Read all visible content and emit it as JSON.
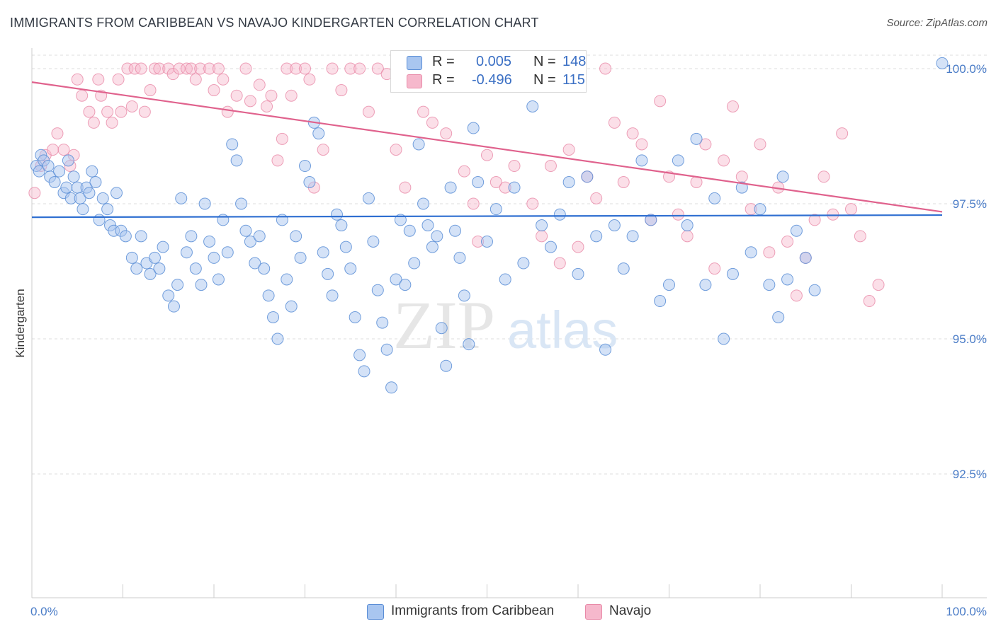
{
  "title": "IMMIGRANTS FROM CARIBBEAN VS NAVAJO KINDERGARTEN CORRELATION CHART",
  "source": "Source: ZipAtlas.com",
  "watermark": {
    "zip": "ZIP",
    "atlas": "atlas"
  },
  "colors": {
    "blue_fill": "#a9c6f0",
    "blue_stroke": "#5b8ed6",
    "blue_line": "#2f6fd1",
    "pink_fill": "#f6b8cc",
    "pink_stroke": "#e88aa8",
    "pink_line": "#e0628d",
    "tick_text": "#4a7cc7",
    "grid": "#dddddd"
  },
  "legend": {
    "rows": [
      {
        "r_label": "R =",
        "r_value": "0.005",
        "n_label": "N =",
        "n_value": "148"
      },
      {
        "r_label": "R =",
        "r_value": "-0.496",
        "n_label": "N =",
        "n_value": "115"
      }
    ],
    "bottom": [
      "Immigrants from Caribbean",
      "Navajo"
    ]
  },
  "chart_data": {
    "type": "scatter",
    "title": "IMMIGRANTS FROM CARIBBEAN VS NAVAJO KINDERGARTEN CORRELATION CHART",
    "xlabel": "",
    "ylabel": "Kindergarten",
    "x_ticks": [
      "0.0%",
      "100.0%"
    ],
    "y_ticks": [
      "100.0%",
      "97.5%",
      "95.0%",
      "92.5%"
    ],
    "xlim": [
      0,
      100
    ],
    "ylim": [
      90.0,
      100.5
    ],
    "grid": true,
    "legend_placement": "top-center",
    "series": [
      {
        "name": "Immigrants from Caribbean",
        "trend": {
          "x": [
            0,
            100
          ],
          "y": [
            97.25,
            97.29
          ]
        },
        "points": [
          [
            0.5,
            98.2
          ],
          [
            0.8,
            98.1
          ],
          [
            1.0,
            98.4
          ],
          [
            1.3,
            98.3
          ],
          [
            1.8,
            98.2
          ],
          [
            2.0,
            98.0
          ],
          [
            2.5,
            97.9
          ],
          [
            3.0,
            98.1
          ],
          [
            3.5,
            97.7
          ],
          [
            3.8,
            97.8
          ],
          [
            4.0,
            98.3
          ],
          [
            4.3,
            97.6
          ],
          [
            4.6,
            98.0
          ],
          [
            5.0,
            97.8
          ],
          [
            5.3,
            97.6
          ],
          [
            5.6,
            97.4
          ],
          [
            6.0,
            97.8
          ],
          [
            6.3,
            97.7
          ],
          [
            6.6,
            98.1
          ],
          [
            7.0,
            97.9
          ],
          [
            7.4,
            97.2
          ],
          [
            7.8,
            97.6
          ],
          [
            8.3,
            97.4
          ],
          [
            8.6,
            97.1
          ],
          [
            9.0,
            97.0
          ],
          [
            9.3,
            97.7
          ],
          [
            9.8,
            97.0
          ],
          [
            10.3,
            96.9
          ],
          [
            11.0,
            96.5
          ],
          [
            11.5,
            96.3
          ],
          [
            12.0,
            96.9
          ],
          [
            12.6,
            96.4
          ],
          [
            13.0,
            96.2
          ],
          [
            13.5,
            96.5
          ],
          [
            14.0,
            96.3
          ],
          [
            14.4,
            96.7
          ],
          [
            15.0,
            95.8
          ],
          [
            15.6,
            95.6
          ],
          [
            16.0,
            96.0
          ],
          [
            16.4,
            97.6
          ],
          [
            17.0,
            96.6
          ],
          [
            17.5,
            96.9
          ],
          [
            18.0,
            96.3
          ],
          [
            18.6,
            96.0
          ],
          [
            19.0,
            97.5
          ],
          [
            19.5,
            96.8
          ],
          [
            20.0,
            96.5
          ],
          [
            20.5,
            96.1
          ],
          [
            21.0,
            97.2
          ],
          [
            21.5,
            96.6
          ],
          [
            22.0,
            98.6
          ],
          [
            22.5,
            98.3
          ],
          [
            23.0,
            97.5
          ],
          [
            23.5,
            97.0
          ],
          [
            24.0,
            96.8
          ],
          [
            24.5,
            96.4
          ],
          [
            25.0,
            96.9
          ],
          [
            25.5,
            96.3
          ],
          [
            26.0,
            95.8
          ],
          [
            26.5,
            95.4
          ],
          [
            27.0,
            95.0
          ],
          [
            27.5,
            97.2
          ],
          [
            28.0,
            96.1
          ],
          [
            28.5,
            95.6
          ],
          [
            29.0,
            96.9
          ],
          [
            29.5,
            96.5
          ],
          [
            30.0,
            98.2
          ],
          [
            30.5,
            97.9
          ],
          [
            31.0,
            99.0
          ],
          [
            31.5,
            98.8
          ],
          [
            32.0,
            96.6
          ],
          [
            32.5,
            96.2
          ],
          [
            33.0,
            95.8
          ],
          [
            33.5,
            97.3
          ],
          [
            34.0,
            97.1
          ],
          [
            34.5,
            96.7
          ],
          [
            35.0,
            96.3
          ],
          [
            35.5,
            95.4
          ],
          [
            36.0,
            94.7
          ],
          [
            36.5,
            94.4
          ],
          [
            37.0,
            97.6
          ],
          [
            37.5,
            96.8
          ],
          [
            38.0,
            95.9
          ],
          [
            38.5,
            95.3
          ],
          [
            39.0,
            94.8
          ],
          [
            39.5,
            94.1
          ],
          [
            40.0,
            96.1
          ],
          [
            40.5,
            97.2
          ],
          [
            41.0,
            96.0
          ],
          [
            41.5,
            97.0
          ],
          [
            42.0,
            96.4
          ],
          [
            42.5,
            98.6
          ],
          [
            43.0,
            97.5
          ],
          [
            43.5,
            97.1
          ],
          [
            44.0,
            96.7
          ],
          [
            44.5,
            96.9
          ],
          [
            45.0,
            95.2
          ],
          [
            45.5,
            94.5
          ],
          [
            46.0,
            97.8
          ],
          [
            46.5,
            97.0
          ],
          [
            47.0,
            96.5
          ],
          [
            47.5,
            95.8
          ],
          [
            48.0,
            94.9
          ],
          [
            48.5,
            98.9
          ],
          [
            49.0,
            97.9
          ],
          [
            50.0,
            96.8
          ],
          [
            51.0,
            97.4
          ],
          [
            52.0,
            96.1
          ],
          [
            53.0,
            97.8
          ],
          [
            54.0,
            96.4
          ],
          [
            55.0,
            99.3
          ],
          [
            56.0,
            97.1
          ],
          [
            57.0,
            96.7
          ],
          [
            58.0,
            97.3
          ],
          [
            59.0,
            97.9
          ],
          [
            60.0,
            96.2
          ],
          [
            61.0,
            98.0
          ],
          [
            62.0,
            96.9
          ],
          [
            63.0,
            94.8
          ],
          [
            64.0,
            97.1
          ],
          [
            65.0,
            96.3
          ],
          [
            66.0,
            96.9
          ],
          [
            67.0,
            98.3
          ],
          [
            68.0,
            97.2
          ],
          [
            69.0,
            95.7
          ],
          [
            70.0,
            96.0
          ],
          [
            71.0,
            98.3
          ],
          [
            72.0,
            97.1
          ],
          [
            73.0,
            98.7
          ],
          [
            74.0,
            96.0
          ],
          [
            75.0,
            97.6
          ],
          [
            76.0,
            95.0
          ],
          [
            77.0,
            96.2
          ],
          [
            78.0,
            97.8
          ],
          [
            79.0,
            96.6
          ],
          [
            80.0,
            97.4
          ],
          [
            81.0,
            96.0
          ],
          [
            82.0,
            95.4
          ],
          [
            82.5,
            98.0
          ],
          [
            83.0,
            96.1
          ],
          [
            84.0,
            97.0
          ],
          [
            85.0,
            96.5
          ],
          [
            86.0,
            95.9
          ],
          [
            100.0,
            100.1
          ]
        ]
      },
      {
        "name": "Navajo",
        "trend": {
          "x": [
            0,
            100
          ],
          "y": [
            99.75,
            97.35
          ]
        },
        "points": [
          [
            0.3,
            97.7
          ],
          [
            1.0,
            98.2
          ],
          [
            1.5,
            98.4
          ],
          [
            2.3,
            98.5
          ],
          [
            2.8,
            98.8
          ],
          [
            3.5,
            98.5
          ],
          [
            4.2,
            98.2
          ],
          [
            4.6,
            98.4
          ],
          [
            5.0,
            99.8
          ],
          [
            5.5,
            99.5
          ],
          [
            6.3,
            99.2
          ],
          [
            6.8,
            99.0
          ],
          [
            7.3,
            99.8
          ],
          [
            7.6,
            99.5
          ],
          [
            8.3,
            99.2
          ],
          [
            8.8,
            99.0
          ],
          [
            9.5,
            99.8
          ],
          [
            9.8,
            99.2
          ],
          [
            10.5,
            100.0
          ],
          [
            11.0,
            99.3
          ],
          [
            11.3,
            100.0
          ],
          [
            12.0,
            100.0
          ],
          [
            12.4,
            99.2
          ],
          [
            13.0,
            99.6
          ],
          [
            13.5,
            100.0
          ],
          [
            14.0,
            100.0
          ],
          [
            15.0,
            100.0
          ],
          [
            15.5,
            99.9
          ],
          [
            16.2,
            100.0
          ],
          [
            17.0,
            100.0
          ],
          [
            17.5,
            100.0
          ],
          [
            18.0,
            99.8
          ],
          [
            18.5,
            100.0
          ],
          [
            19.5,
            100.0
          ],
          [
            20.0,
            99.6
          ],
          [
            20.5,
            100.0
          ],
          [
            21.0,
            99.8
          ],
          [
            21.5,
            99.2
          ],
          [
            22.5,
            99.5
          ],
          [
            23.5,
            100.0
          ],
          [
            24.0,
            99.4
          ],
          [
            25.0,
            99.7
          ],
          [
            25.8,
            99.3
          ],
          [
            26.3,
            99.5
          ],
          [
            27.0,
            98.3
          ],
          [
            27.5,
            98.7
          ],
          [
            28.0,
            100.0
          ],
          [
            28.5,
            99.5
          ],
          [
            29.0,
            100.0
          ],
          [
            30.0,
            100.0
          ],
          [
            30.5,
            99.8
          ],
          [
            31.0,
            97.8
          ],
          [
            32.0,
            98.5
          ],
          [
            33.0,
            100.0
          ],
          [
            34.0,
            99.6
          ],
          [
            35.0,
            100.0
          ],
          [
            36.0,
            100.0
          ],
          [
            37.0,
            99.2
          ],
          [
            38.0,
            100.0
          ],
          [
            39.0,
            99.9
          ],
          [
            40.0,
            98.5
          ],
          [
            41.0,
            97.8
          ],
          [
            42.5,
            100.0
          ],
          [
            43.0,
            99.2
          ],
          [
            44.0,
            99.0
          ],
          [
            45.0,
            100.0
          ],
          [
            45.5,
            98.8
          ],
          [
            46.0,
            100.0
          ],
          [
            47.5,
            98.1
          ],
          [
            48.0,
            100.0
          ],
          [
            48.5,
            97.5
          ],
          [
            49.0,
            96.8
          ],
          [
            49.5,
            100.0
          ],
          [
            50.0,
            98.4
          ],
          [
            50.5,
            100.0
          ],
          [
            51.0,
            97.9
          ],
          [
            52.0,
            97.8
          ],
          [
            53.0,
            98.2
          ],
          [
            54.0,
            100.0
          ],
          [
            55.0,
            97.5
          ],
          [
            56.0,
            96.9
          ],
          [
            57.0,
            98.2
          ],
          [
            58.0,
            96.4
          ],
          [
            59.0,
            98.5
          ],
          [
            60.0,
            96.7
          ],
          [
            61.0,
            98.0
          ],
          [
            62.0,
            97.6
          ],
          [
            63.0,
            100.0
          ],
          [
            64.0,
            99.0
          ],
          [
            65.0,
            97.9
          ],
          [
            66.0,
            98.8
          ],
          [
            67.0,
            98.6
          ],
          [
            68.0,
            97.2
          ],
          [
            69.0,
            99.4
          ],
          [
            70.0,
            98.0
          ],
          [
            71.0,
            97.3
          ],
          [
            72.0,
            96.9
          ],
          [
            73.0,
            97.9
          ],
          [
            74.0,
            98.6
          ],
          [
            75.0,
            96.3
          ],
          [
            76.0,
            98.3
          ],
          [
            77.0,
            99.3
          ],
          [
            78.0,
            98.0
          ],
          [
            79.0,
            97.4
          ],
          [
            80.0,
            98.6
          ],
          [
            81.0,
            96.6
          ],
          [
            82.0,
            97.8
          ],
          [
            83.0,
            96.8
          ],
          [
            84.0,
            95.8
          ],
          [
            85.0,
            96.5
          ],
          [
            86.0,
            97.2
          ],
          [
            87.0,
            98.0
          ],
          [
            88.0,
            97.3
          ],
          [
            89.0,
            98.8
          ],
          [
            90.0,
            97.4
          ],
          [
            91.0,
            96.9
          ],
          [
            92.0,
            95.7
          ],
          [
            93.0,
            96.0
          ]
        ]
      }
    ]
  }
}
